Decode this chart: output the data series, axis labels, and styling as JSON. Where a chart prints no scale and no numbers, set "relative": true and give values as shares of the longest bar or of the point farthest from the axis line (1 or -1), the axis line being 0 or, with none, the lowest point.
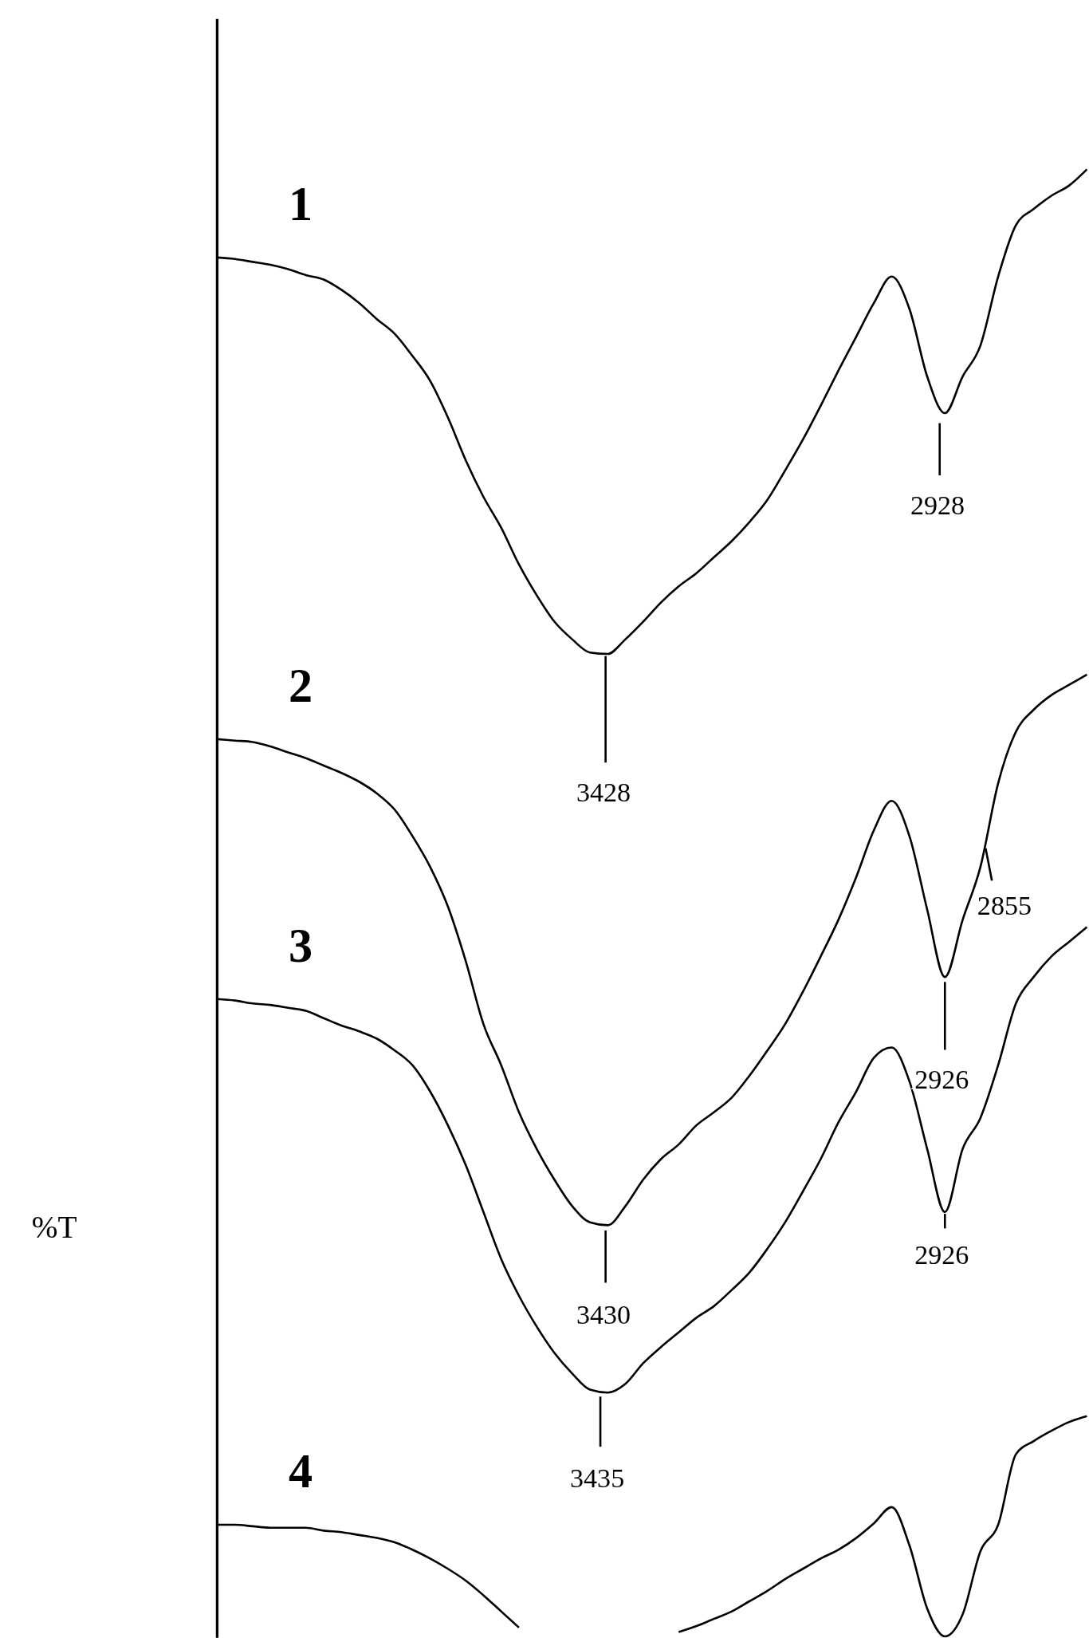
{
  "chart_data": {
    "type": "line",
    "relative": true,
    "ylabel": "%T",
    "categories": [
      null,
      null,
      null,
      null,
      null,
      null,
      null,
      null,
      null,
      null,
      null,
      null,
      null,
      null,
      null,
      null,
      null,
      null,
      null,
      null,
      null,
      null,
      null,
      null,
      null,
      null,
      null,
      null,
      null,
      null,
      null,
      null,
      null,
      null,
      null,
      null,
      null,
      null,
      null,
      null,
      null,
      null,
      null,
      null,
      null,
      null,
      null,
      null,
      null,
      null
    ],
    "series": [
      {
        "name": "1",
        "color": "#000000",
        "values": [
          0.94,
          0.939,
          0.937,
          0.935,
          0.932,
          0.928,
          0.925,
          0.918,
          0.909,
          0.898,
          0.888,
          0.873,
          0.856,
          0.831,
          0.802,
          0.777,
          0.756,
          0.731,
          0.71,
          0.692,
          0.68,
          0.671,
          0.67,
          0.68,
          0.692,
          0.705,
          0.716,
          0.725,
          0.736,
          0.747,
          0.76,
          0.775,
          0.795,
          0.816,
          0.839,
          0.863,
          0.886,
          0.909,
          0.927,
          0.905,
          0.859,
          0.834,
          0.859,
          0.88,
          0.927,
          0.962,
          0.973,
          0.982,
          0.989,
          1.0
        ]
      },
      {
        "name": "2",
        "color": "#000000",
        "values": [
          0.612,
          0.611,
          0.61,
          0.607,
          0.603,
          0.599,
          0.594,
          0.589,
          0.583,
          0.575,
          0.564,
          0.546,
          0.525,
          0.498,
          0.461,
          0.418,
          0.39,
          0.358,
          0.333,
          0.312,
          0.294,
          0.283,
          0.281,
          0.294,
          0.312,
          0.326,
          0.336,
          0.349,
          0.358,
          0.368,
          0.383,
          0.4,
          0.418,
          0.44,
          0.464,
          0.489,
          0.518,
          0.55,
          0.57,
          0.546,
          0.496,
          0.45,
          0.489,
          0.525,
          0.582,
          0.617,
          0.632,
          0.642,
          0.649,
          0.656
        ]
      },
      {
        "name": "3",
        "color": "#000000",
        "values": [
          0.435,
          0.434,
          0.432,
          0.431,
          0.429,
          0.427,
          0.422,
          0.417,
          0.413,
          0.408,
          0.4,
          0.39,
          0.372,
          0.349,
          0.322,
          0.29,
          0.258,
          0.233,
          0.212,
          0.194,
          0.18,
          0.169,
          0.167,
          0.173,
          0.187,
          0.198,
          0.208,
          0.218,
          0.226,
          0.237,
          0.249,
          0.265,
          0.283,
          0.304,
          0.326,
          0.351,
          0.372,
          0.395,
          0.402,
          0.379,
          0.333,
          0.29,
          0.333,
          0.354,
          0.39,
          0.432,
          0.45,
          0.464,
          0.474,
          0.484
        ]
      },
      {
        "name": "4",
        "color": "#000000",
        "values": [
          0.077,
          0.077,
          0.076,
          0.075,
          0.075,
          0.075,
          0.073,
          0.072,
          0.07,
          0.068,
          0.065,
          0.06,
          0.054,
          0.047,
          0.039,
          0.029,
          0.018,
          0.007,
          null,
          null,
          null,
          null,
          null,
          null,
          null,
          null,
          0.004,
          0.008,
          0.013,
          0.018,
          0.025,
          0.032,
          0.04,
          0.047,
          0.054,
          0.06,
          0.068,
          0.078,
          0.089,
          0.063,
          0.02,
          0.001,
          0.016,
          0.059,
          0.077,
          0.125,
          0.134,
          0.141,
          0.147,
          0.151
        ]
      }
    ],
    "annotations": [
      "3428",
      "2928",
      "3430",
      "2855",
      "2926",
      "2926",
      "3435"
    ],
    "legend": false,
    "marker": "none",
    "line_style": "solid"
  }
}
